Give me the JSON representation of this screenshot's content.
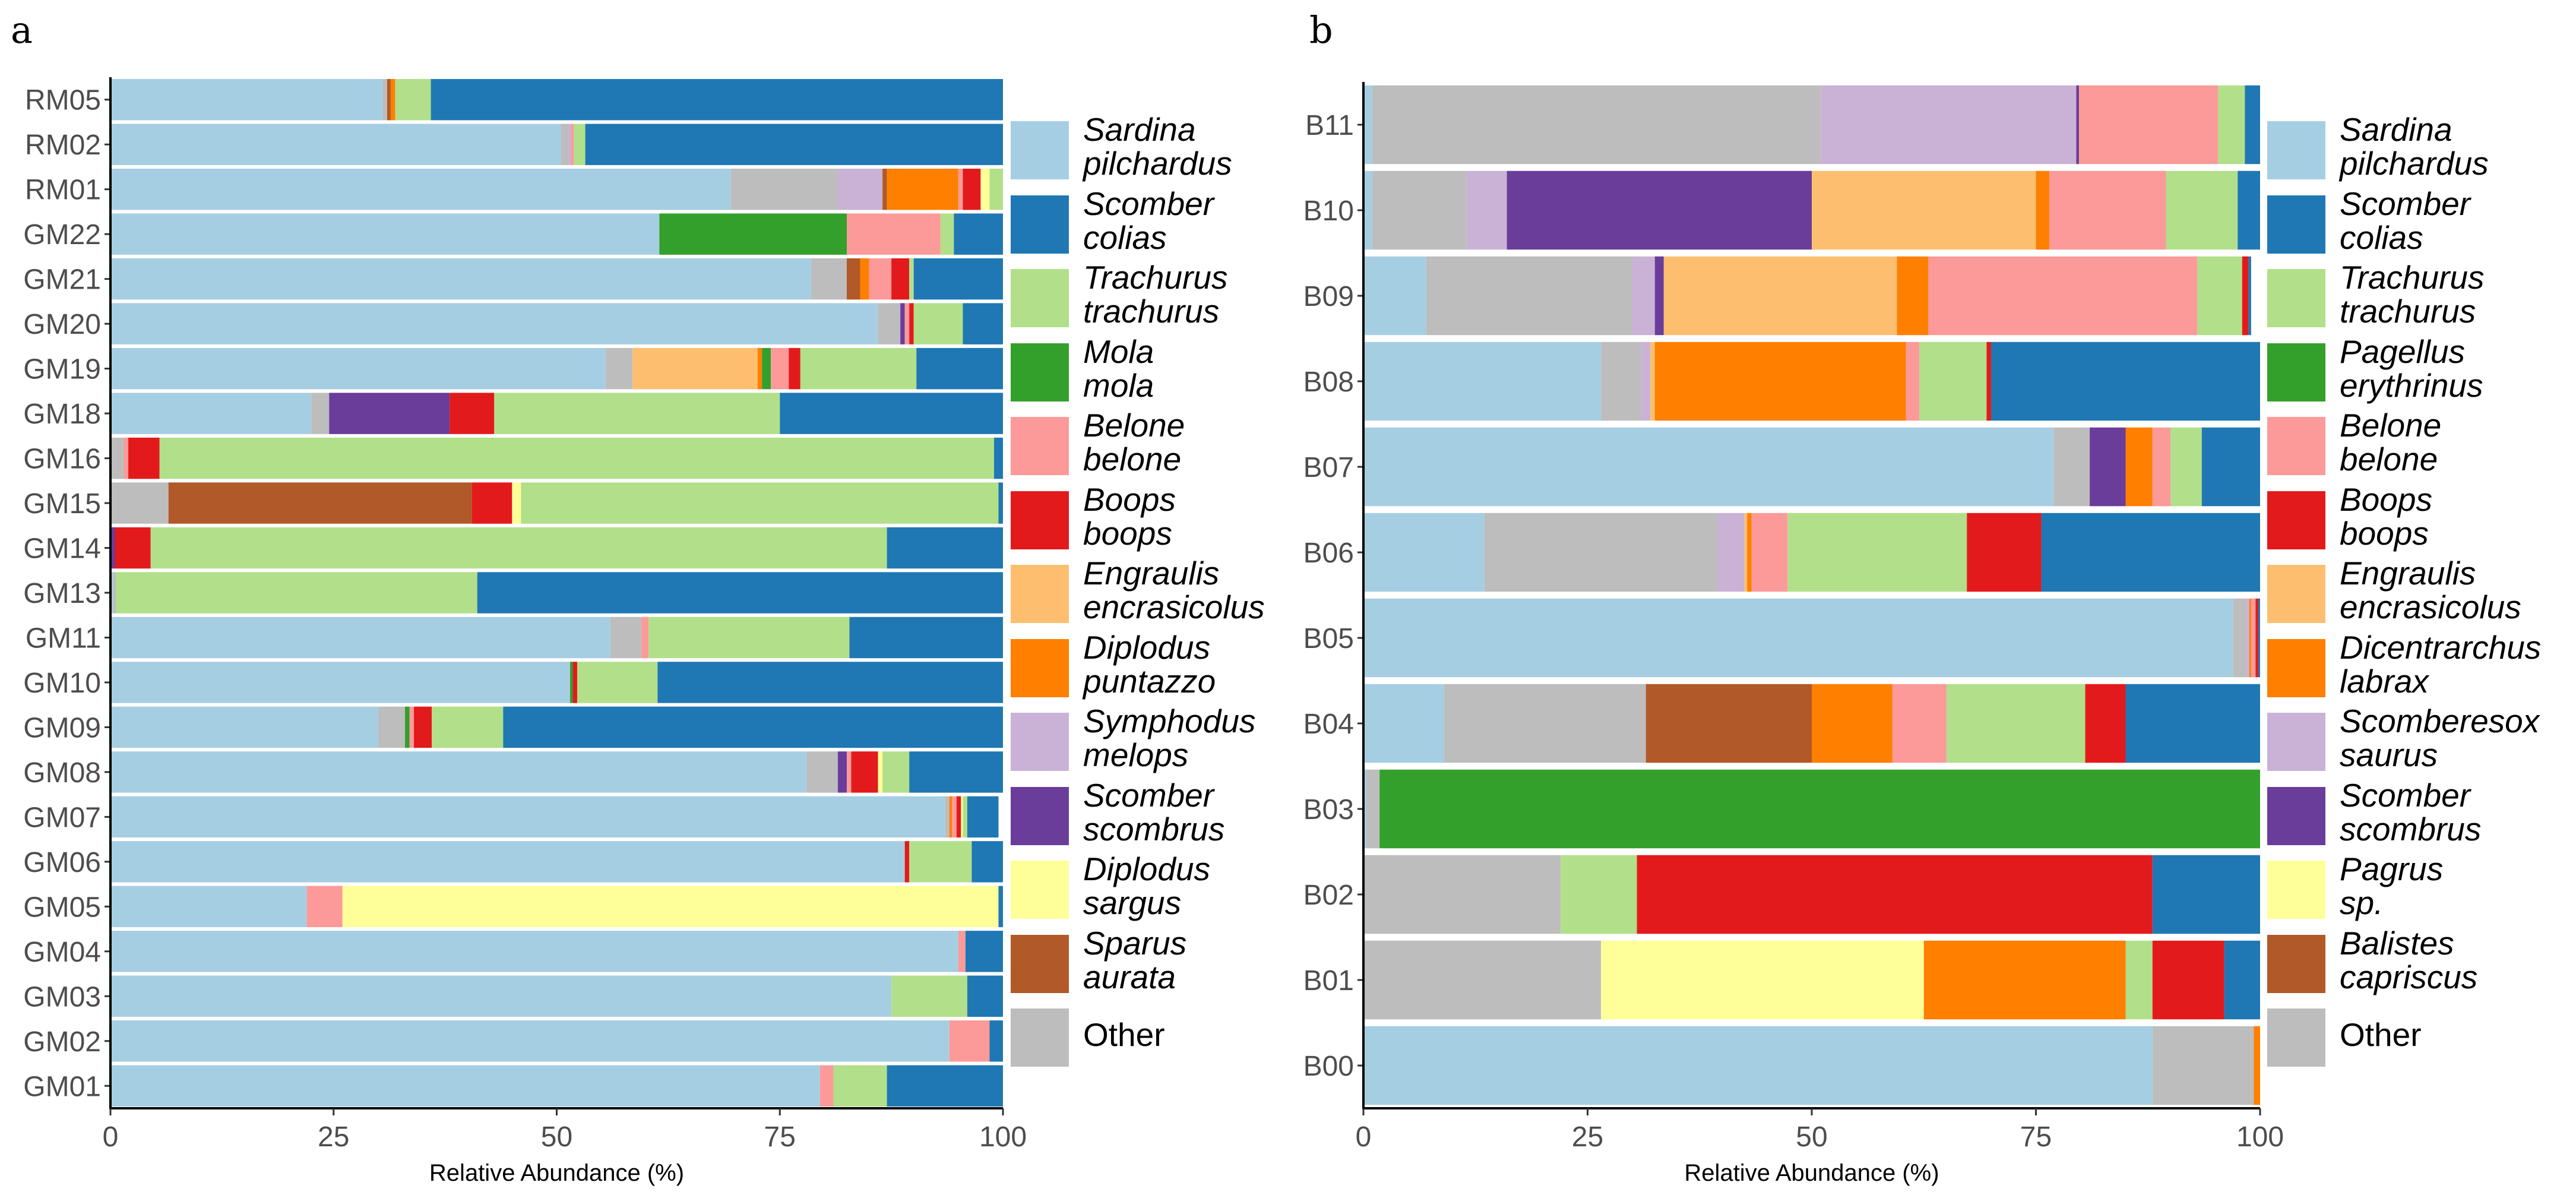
{
  "chart_data": [
    {
      "panel": "a",
      "type": "bar",
      "orientation": "horizontal",
      "stacked": true,
      "xlabel": "Relative Abundance (%)",
      "xlim": [
        0,
        100
      ],
      "xticks": [
        "0",
        "25",
        "50",
        "75",
        "100"
      ],
      "legend_position": "right",
      "categories": [
        "RM05",
        "RM02",
        "RM01",
        "GM22",
        "GM21",
        "GM20",
        "GM19",
        "GM18",
        "GM16",
        "GM15",
        "GM14",
        "GM13",
        "GM11",
        "GM10",
        "GM09",
        "GM08",
        "GM07",
        "GM06",
        "GM05",
        "GM04",
        "GM03",
        "GM02",
        "GM01"
      ],
      "series": [
        {
          "key": "sardina",
          "name": "Sardina pilchardus",
          "color": "#a6cee3",
          "values": [
            30.5,
            50.5,
            69.5,
            61.5,
            78.5,
            86,
            55.5,
            22.5,
            0,
            0,
            0,
            0.3,
            56,
            51.5,
            30,
            78,
            93.5,
            89,
            22,
            95,
            87.5,
            94,
            79.5
          ]
        },
        {
          "key": "other",
          "name": "Other",
          "color": "#bdbdbd",
          "values": [
            0.5,
            0.8,
            12,
            0,
            4,
            2.5,
            3,
            2,
            1.5,
            6.5,
            0,
            0.3,
            3.5,
            0,
            3,
            3.5,
            0.5,
            0,
            0,
            0,
            0,
            0,
            0
          ]
        },
        {
          "key": "symphodus",
          "name": "Symphodus melops",
          "color": "#cab2d6",
          "values": [
            0,
            0.3,
            5,
            0,
            0,
            0,
            0,
            0,
            0,
            0,
            0,
            0,
            0,
            0,
            0,
            0,
            0,
            0,
            0,
            0,
            0,
            0,
            0
          ]
        },
        {
          "key": "scombrus",
          "name": "Scomber scombrus",
          "color": "#6a3d9a",
          "values": [
            0,
            0,
            0,
            0,
            0,
            0.5,
            0,
            13.5,
            0,
            0,
            0.5,
            0,
            0,
            0,
            0,
            1,
            0,
            0,
            0,
            0,
            0,
            0,
            0
          ]
        },
        {
          "key": "sparus",
          "name": "Sparus aurata",
          "color": "#b15928",
          "values": [
            0.4,
            0,
            0.5,
            0,
            1.5,
            0,
            0,
            0,
            0,
            34,
            0,
            0,
            0,
            0,
            0,
            0,
            0,
            0,
            0,
            0,
            0,
            0,
            0
          ]
        },
        {
          "key": "engraulis",
          "name": "Engraulis encrasicolus",
          "color": "#fdbf6f",
          "values": [
            0,
            0,
            0,
            0,
            0,
            0,
            14,
            0,
            0,
            0,
            0,
            0,
            0,
            0,
            0,
            0,
            0,
            0,
            0,
            0,
            0,
            0,
            0
          ]
        },
        {
          "key": "diplodus_p",
          "name": "Diplodus puntazzo",
          "color": "#ff7f00",
          "values": [
            0.5,
            0,
            8,
            0,
            1,
            0,
            0.5,
            0,
            0,
            0,
            0,
            0,
            0,
            0,
            0,
            0,
            0.3,
            0,
            0,
            0,
            0,
            0,
            0
          ]
        },
        {
          "key": "mola",
          "name": "Mola mola",
          "color": "#33a02c",
          "values": [
            0,
            0,
            0,
            21,
            0,
            0,
            1,
            0,
            0,
            0,
            0,
            0,
            0,
            0.3,
            0.5,
            0,
            0,
            0,
            0,
            0,
            0,
            0,
            0
          ]
        },
        {
          "key": "belone",
          "name": "Belone belone",
          "color": "#fb9a99",
          "values": [
            0,
            0.3,
            0.5,
            10.5,
            2.5,
            0.5,
            2,
            0,
            0.5,
            0,
            0,
            0,
            0.8,
            0,
            0.5,
            0.5,
            0.5,
            0,
            4,
            0.8,
            0,
            4.5,
            1.5
          ]
        },
        {
          "key": "boops",
          "name": "Boops boops",
          "color": "#e31a1c",
          "values": [
            0,
            0,
            2,
            0,
            2,
            0.5,
            1.3,
            5,
            3.5,
            4.5,
            4,
            0,
            0,
            0.5,
            2,
            3,
            0.5,
            0.5,
            0,
            0,
            0,
            0,
            0
          ]
        },
        {
          "key": "sargus",
          "name": "Diplodus sargus",
          "color": "#ffff99",
          "values": [
            0,
            0,
            1,
            0,
            0,
            0,
            0,
            0,
            0,
            1,
            0,
            0,
            0,
            0,
            0,
            0.5,
            0.2,
            0,
            73.5,
            0,
            0,
            0,
            0
          ]
        },
        {
          "key": "trachurus",
          "name": "Trachurus trachurus",
          "color": "#b2df8a",
          "values": [
            4,
            1.3,
            1.5,
            1.5,
            0.5,
            5.5,
            13,
            32,
            93.5,
            53.5,
            82.5,
            40.5,
            22.5,
            9,
            8,
            3,
            0.5,
            7,
            0,
            0,
            8.5,
            0,
            6
          ]
        },
        {
          "key": "colias",
          "name": "Scomber colias",
          "color": "#1f78b4",
          "values": [
            64.1,
            46.8,
            0,
            5.5,
            10,
            4.5,
            9.7,
            25,
            1,
            0.5,
            13,
            58.9,
            17.2,
            38.7,
            56,
            10.5,
            3.5,
            3.5,
            0.5,
            4.2,
            4,
            1.5,
            13
          ]
        }
      ]
    },
    {
      "panel": "b",
      "type": "bar",
      "orientation": "horizontal",
      "stacked": true,
      "xlabel": "Relative Abundance (%)",
      "xlim": [
        0,
        100
      ],
      "xticks": [
        "0",
        "25",
        "50",
        "75",
        "100"
      ],
      "legend_position": "right",
      "categories": [
        "B11",
        "B10",
        "B09",
        "B08",
        "B07",
        "B06",
        "B05",
        "B04",
        "B03",
        "B02",
        "B01",
        "B00"
      ],
      "series": [
        {
          "key": "sardina",
          "name": "Sardina pilchardus",
          "color": "#a6cee3",
          "values": [
            1,
            1,
            7,
            26.5,
            77,
            13.5,
            97,
            9,
            0.3,
            0,
            0,
            88
          ]
        },
        {
          "key": "other",
          "name": "Other",
          "color": "#bdbdbd",
          "values": [
            50,
            10.5,
            23,
            4.5,
            4,
            26,
            1.5,
            22.5,
            1.5,
            22,
            26.5,
            11.3
          ]
        },
        {
          "key": "scomberesox",
          "name": "Scomberesox saurus",
          "color": "#cab2d6",
          "values": [
            28.5,
            4.5,
            2.5,
            1,
            0,
            3,
            0.3,
            0,
            0,
            0,
            0,
            0
          ]
        },
        {
          "key": "scombrus",
          "name": "Scomber scombrus",
          "color": "#6a3d9a",
          "values": [
            0.3,
            34,
            1,
            0,
            4,
            0,
            0,
            0,
            0,
            0,
            0,
            0
          ]
        },
        {
          "key": "balistes",
          "name": "Balistes capriscus",
          "color": "#b15928",
          "values": [
            0,
            0,
            0,
            0,
            0,
            0,
            0,
            18.5,
            0,
            0,
            0,
            0
          ]
        },
        {
          "key": "pagrus",
          "name": "Pagrus sp.",
          "color": "#ffff99",
          "values": [
            0,
            0,
            0,
            0,
            0,
            0,
            0,
            0,
            0,
            0,
            36,
            0
          ]
        },
        {
          "key": "engraulis",
          "name": "Engraulis encrasicolus",
          "color": "#fdbf6f",
          "values": [
            0,
            25,
            26,
            0.5,
            0,
            0.3,
            0,
            0,
            0,
            0,
            0,
            0
          ]
        },
        {
          "key": "dicentrarchus",
          "name": "Dicentrarchus labrax",
          "color": "#ff7f00",
          "values": [
            0,
            1.5,
            3.5,
            28,
            3,
            0.5,
            0.2,
            9,
            0,
            0,
            22.5,
            0.7
          ]
        },
        {
          "key": "belone",
          "name": "Belone belone",
          "color": "#fb9a99",
          "values": [
            15.5,
            13,
            30,
            1.5,
            2,
            4,
            0.5,
            6,
            0,
            0,
            0,
            0
          ]
        },
        {
          "key": "pagellus",
          "name": "Pagellus erythrinus",
          "color": "#33a02c",
          "values": [
            0,
            0,
            0,
            0,
            0,
            0,
            0,
            0,
            98.2,
            0,
            0,
            0
          ]
        },
        {
          "key": "trachurus",
          "name": "Trachurus trachurus",
          "color": "#b2df8a",
          "values": [
            3,
            8,
            5,
            7.5,
            3.5,
            20,
            0,
            15.5,
            0,
            8.5,
            3,
            0
          ]
        },
        {
          "key": "boops",
          "name": "Boops boops",
          "color": "#e31a1c",
          "values": [
            0,
            0,
            0.7,
            0.5,
            0,
            8.3,
            0.3,
            4.5,
            0,
            57.5,
            8,
            0
          ]
        },
        {
          "key": "colias",
          "name": "Scomber colias",
          "color": "#1f78b4",
          "values": [
            1.7,
            2.5,
            0.3,
            30,
            6.5,
            24.4,
            0.2,
            15,
            0,
            12,
            4,
            0
          ]
        }
      ]
    }
  ],
  "panels": {
    "a": {
      "letter": "a",
      "xlabel": "Relative Abundance (%)",
      "legend": [
        {
          "line1": "Sardina",
          "line2": "pilchardus",
          "color": "#a6cee3"
        },
        {
          "line1": "Scomber",
          "line2": "colias",
          "color": "#1f78b4"
        },
        {
          "line1": "Trachurus",
          "line2": "trachurus",
          "color": "#b2df8a"
        },
        {
          "line1": "Mola",
          "line2": "mola",
          "color": "#33a02c"
        },
        {
          "line1": "Belone",
          "line2": "belone",
          "color": "#fb9a99"
        },
        {
          "line1": "Boops",
          "line2": "boops",
          "color": "#e31a1c"
        },
        {
          "line1": "Engraulis",
          "line2": "encrasicolus",
          "color": "#fdbf6f"
        },
        {
          "line1": "Diplodus",
          "line2": "puntazzo",
          "color": "#ff7f00"
        },
        {
          "line1": "Symphodus",
          "line2": "melops",
          "color": "#cab2d6"
        },
        {
          "line1": "Scomber",
          "line2": "scombrus",
          "color": "#6a3d9a"
        },
        {
          "line1": "Diplodus",
          "line2": "sargus",
          "color": "#ffff99"
        },
        {
          "line1": "Sparus",
          "line2": "aurata",
          "color": "#b15928"
        },
        {
          "line1": "Other",
          "line2": "",
          "color": "#bdbdbd"
        }
      ]
    },
    "b": {
      "letter": "b",
      "xlabel": "Relative Abundance (%)",
      "legend": [
        {
          "line1": "Sardina",
          "line2": "pilchardus",
          "color": "#a6cee3"
        },
        {
          "line1": "Scomber",
          "line2": "colias",
          "color": "#1f78b4"
        },
        {
          "line1": "Trachurus",
          "line2": "trachurus",
          "color": "#b2df8a"
        },
        {
          "line1": "Pagellus",
          "line2": "erythrinus",
          "color": "#33a02c"
        },
        {
          "line1": "Belone",
          "line2": "belone",
          "color": "#fb9a99"
        },
        {
          "line1": "Boops",
          "line2": "boops",
          "color": "#e31a1c"
        },
        {
          "line1": "Engraulis",
          "line2": "encrasicolus",
          "color": "#fdbf6f"
        },
        {
          "line1": "Dicentrarchus",
          "line2": "labrax",
          "color": "#ff7f00"
        },
        {
          "line1": "Scomberesox",
          "line2": "saurus",
          "color": "#cab2d6"
        },
        {
          "line1": "Scomber",
          "line2": "scombrus",
          "color": "#6a3d9a"
        },
        {
          "line1": "Pagrus",
          "line2": "sp.",
          "color": "#ffff99"
        },
        {
          "line1": "Balistes",
          "line2": "capriscus",
          "color": "#b15928"
        },
        {
          "line1": "Other",
          "line2": "",
          "color": "#bdbdbd"
        }
      ]
    }
  }
}
